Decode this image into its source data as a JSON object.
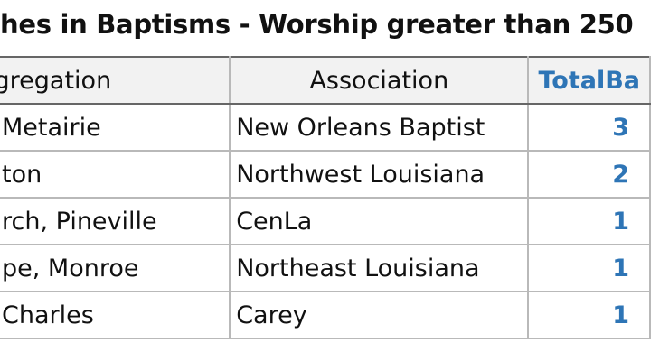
{
  "header": {
    "title": "hes in Baptisms - Worship greater than 250"
  },
  "table": {
    "columns": [
      "gregation",
      "Association",
      "TotalBa"
    ],
    "rows": [
      [
        "Metairie",
        "New Orleans Baptist",
        "3"
      ],
      [
        "ton",
        "Northwest Louisiana",
        "2"
      ],
      [
        "rch, Pineville",
        "CenLa",
        "1"
      ],
      [
        "pe, Monroe",
        "Northeast Louisiana",
        "1"
      ],
      [
        "Charles",
        "Carey",
        "1"
      ]
    ]
  }
}
